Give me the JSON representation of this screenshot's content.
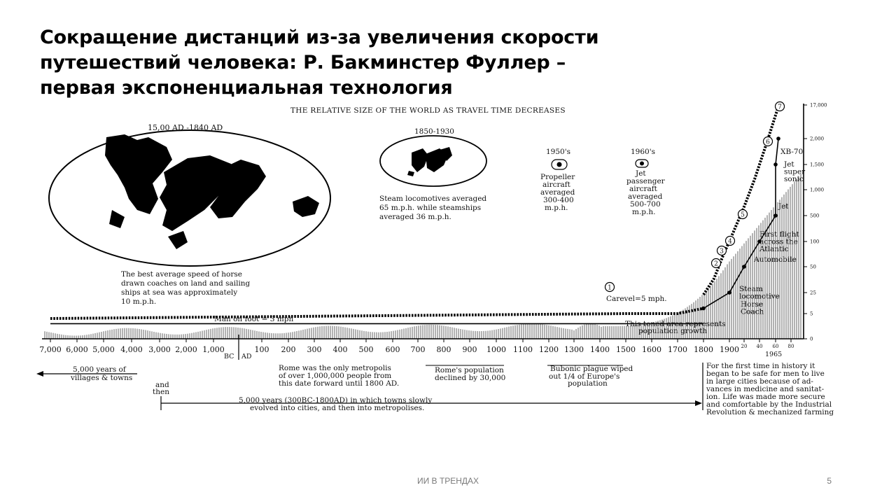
{
  "slide": {
    "title_lines": [
      "Сокращение дистанций из-за увеличения скорости",
      "путешествий человека: Р. Бакминстер Фуллер –",
      "первая экспоненциальная технология"
    ],
    "footer": "ИИ В ТРЕНДАХ",
    "page_number": "5"
  },
  "figure": {
    "title": "THE RELATIVE SIZE OF THE WORLD AS TRAVEL TIME DECREASES",
    "map_large_label": "15,00 AD -1840 AD",
    "map_large_caption": [
      "The best average speed of horse",
      "drawn coaches on land and sailing",
      "ships at sea was approximately",
      "10 m.p.h."
    ],
    "map_small_label": "1850-1930",
    "map_small_caption": [
      "Steam locomotives averaged",
      "65 m.p.h. while steamships",
      "averaged 36 m.p.h."
    ],
    "era_1950_label": "1950's",
    "era_1950_caption": [
      "Propeller",
      "aircraft",
      "averaged",
      "300-400",
      "m.p.h."
    ],
    "era_1960_label": "1960's",
    "era_1960_caption": [
      "Jet",
      "passenger",
      "aircraft",
      "averaged",
      "500-700",
      "m.p.h."
    ],
    "man_on_foot": "Man on foot = 3 mph",
    "carevel": "Carevel=5 mph.",
    "toned_area": [
      "This toned area represents",
      "population growth"
    ],
    "bc": "BC",
    "ad": "AD",
    "year_1965": "1965",
    "bottom_notes": {
      "villages": [
        "5,000 years of",
        "villages & towns"
      ],
      "and_then": [
        "and",
        "then"
      ],
      "cities": [
        "5,000 years (300BC-1800AD) in which towns slowly",
        "evolved into cities, and then into metropolises."
      ],
      "rome": [
        "Rome was the only metropolis",
        "of over 1,000,000 people from",
        "this date forward until 1800 AD."
      ],
      "rome_pop": [
        "Rome's population",
        "declined by 30,000"
      ],
      "plague": [
        "Bubonic plague wiped",
        "out 1/4 of Europe's",
        "population"
      ],
      "modern": [
        "For the first time in history it",
        "began to be safe for men to live",
        "in large cities because of ad-",
        "vances in medicine and sanitat-",
        "ion. Life was made more secure",
        "and comfortable by the Industrial",
        "Revolution & mechanized farming"
      ]
    }
  },
  "chart_data": {
    "type": "line",
    "title": "THE RELATIVE SIZE OF THE WORLD AS TRAVEL TIME DECREASES",
    "x_tick_labels": [
      "7,000",
      "6,000",
      "5,000",
      "4,000",
      "3,000",
      "2,000",
      "1,000",
      "100",
      "200",
      "300",
      "400",
      "500",
      "600",
      "700",
      "800",
      "900",
      "1000",
      "1100",
      "1200",
      "1300",
      "1400",
      "1500",
      "1600",
      "1700",
      "1800",
      "1900",
      "20",
      "40",
      "60",
      "80"
    ],
    "y_tick_labels": [
      "17,000",
      "2,000",
      "1,500",
      "1,000",
      "500",
      "100",
      "50",
      "25",
      "5",
      "0"
    ],
    "y_scale": "non-linear (speed, m.p.h.)",
    "series": [
      {
        "name": "Man on foot = 3 mph",
        "points": [
          {
            "x": "7,000",
            "y": 3
          },
          {
            "x": "1500",
            "y": 3
          },
          {
            "x": "1800",
            "y": 3
          }
        ]
      },
      {
        "name": "Carevel=5 mph.",
        "points": [
          {
            "x": "1500",
            "y": 5
          },
          {
            "x": "1700",
            "y": 5
          },
          {
            "x": "1800",
            "y": 10
          }
        ]
      },
      {
        "name": "Speed milestones",
        "points": [
          {
            "x": "1800",
            "y": 10,
            "label": "Horse Coach"
          },
          {
            "x": "1900",
            "y": 25,
            "label": "Steam locomotive"
          },
          {
            "x": "20",
            "y": 50,
            "label": "Automobile"
          },
          {
            "x": "40",
            "y": 100,
            "label": "First flight across the Atlantic"
          },
          {
            "x": "60",
            "y": 500,
            "label": "Jet"
          },
          {
            "x": "60",
            "y": 1500,
            "label": "Jet super sonic"
          },
          {
            "x": "1965",
            "y": 2000,
            "label": "XB-70"
          }
        ]
      }
    ],
    "annotations": [
      "1",
      "2",
      "3",
      "4",
      "5",
      "6",
      "7"
    ]
  }
}
